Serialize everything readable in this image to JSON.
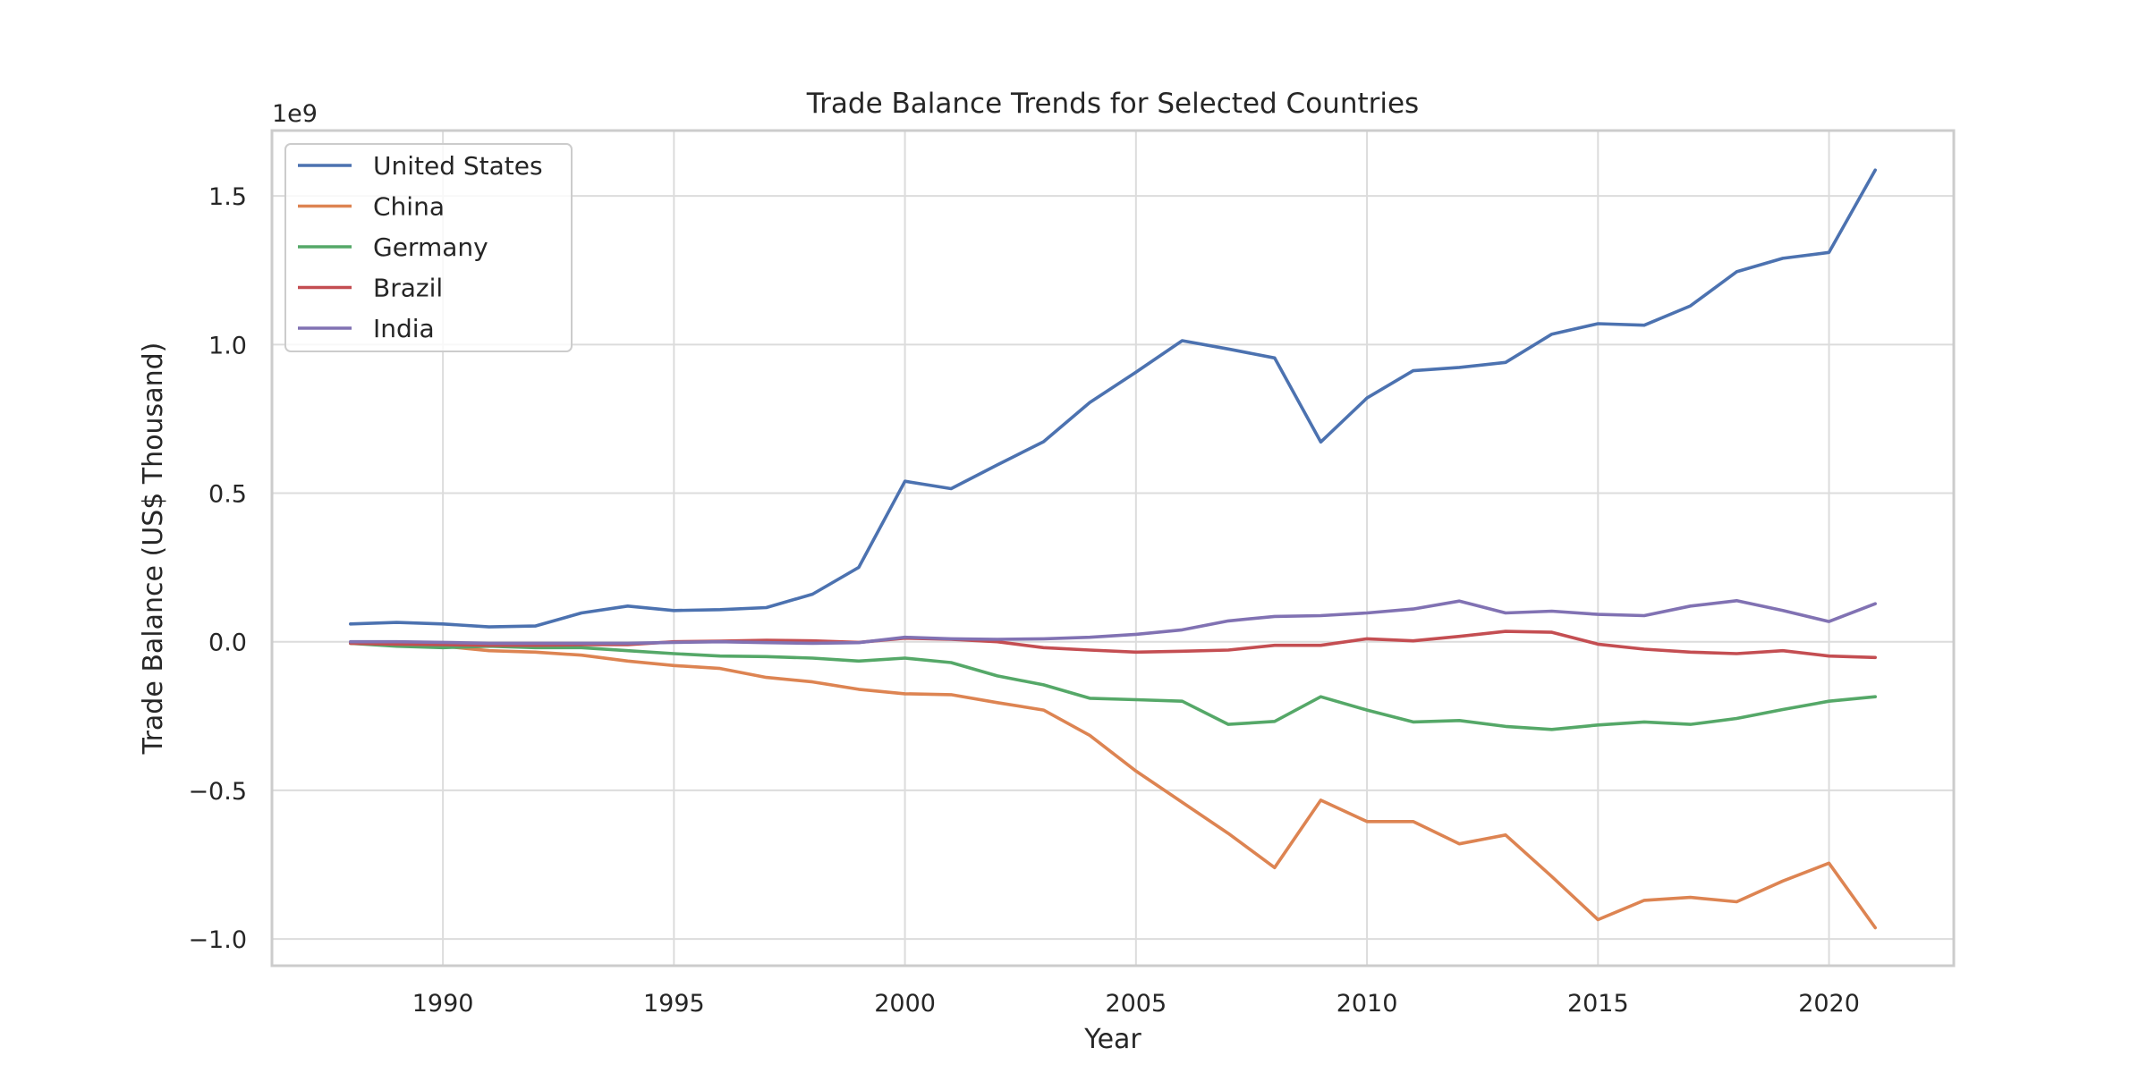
{
  "chart_data": {
    "type": "line",
    "title": "Trade Balance Trends for Selected Countries",
    "xlabel": "Year",
    "ylabel": "Trade Balance (US$ Thousand)",
    "y_offset_text": "1e9",
    "xlim": [
      1986.3,
      2022.7
    ],
    "ylim": [
      -1.09,
      1.72
    ],
    "x_ticks": [
      1990,
      1995,
      2000,
      2005,
      2010,
      2015,
      2020
    ],
    "x_tick_labels": [
      "1990",
      "1995",
      "2000",
      "2005",
      "2010",
      "2015",
      "2020"
    ],
    "y_ticks": [
      -1.0,
      -0.5,
      0.0,
      0.5,
      1.0,
      1.5
    ],
    "y_tick_labels": [
      "−1.0",
      "−0.5",
      "0.0",
      "0.5",
      "1.0",
      "1.5"
    ],
    "grid": true,
    "legend_position": "upper-left",
    "x": [
      1988,
      1989,
      1990,
      1991,
      1992,
      1993,
      1994,
      1995,
      1996,
      1997,
      1998,
      1999,
      2000,
      2001,
      2002,
      2003,
      2004,
      2005,
      2006,
      2007,
      2008,
      2009,
      2010,
      2011,
      2012,
      2013,
      2014,
      2015,
      2016,
      2017,
      2018,
      2019,
      2020,
      2021
    ],
    "series": [
      {
        "name": "United States",
        "color": "#4c72b0",
        "values": [
          0.06,
          0.065,
          0.06,
          0.05,
          0.053,
          0.097,
          0.12,
          0.105,
          0.108,
          0.115,
          0.16,
          0.25,
          0.54,
          0.515,
          0.595,
          0.673,
          0.805,
          0.907,
          1.013,
          0.985,
          0.955,
          0.672,
          0.82,
          0.912,
          0.923,
          0.94,
          1.035,
          1.07,
          1.065,
          1.13,
          1.245,
          1.29,
          1.31,
          1.587
        ]
      },
      {
        "name": "China",
        "color": "#dd8452",
        "values": [
          -0.005,
          -0.01,
          -0.015,
          -0.03,
          -0.035,
          -0.045,
          -0.065,
          -0.08,
          -0.09,
          -0.12,
          -0.135,
          -0.16,
          -0.175,
          -0.178,
          -0.205,
          -0.23,
          -0.315,
          -0.435,
          -0.54,
          -0.645,
          -0.76,
          -0.533,
          -0.605,
          -0.605,
          -0.68,
          -0.65,
          -0.79,
          -0.935,
          -0.87,
          -0.86,
          -0.875,
          -0.805,
          -0.745,
          -0.962
        ]
      },
      {
        "name": "Germany",
        "color": "#55a868",
        "values": [
          -0.005,
          -0.015,
          -0.02,
          -0.015,
          -0.02,
          -0.02,
          -0.03,
          -0.04,
          -0.048,
          -0.05,
          -0.055,
          -0.065,
          -0.055,
          -0.07,
          -0.115,
          -0.145,
          -0.19,
          -0.195,
          -0.2,
          -0.278,
          -0.268,
          -0.185,
          -0.23,
          -0.27,
          -0.265,
          -0.285,
          -0.295,
          -0.28,
          -0.27,
          -0.278,
          -0.258,
          -0.228,
          -0.2,
          -0.185
        ]
      },
      {
        "name": "Brazil",
        "color": "#c44e52",
        "values": [
          -0.005,
          -0.008,
          -0.01,
          -0.012,
          -0.012,
          -0.01,
          -0.01,
          0.0,
          0.002,
          0.005,
          0.003,
          -0.002,
          0.012,
          0.008,
          0.0,
          -0.02,
          -0.028,
          -0.035,
          -0.032,
          -0.028,
          -0.012,
          -0.012,
          0.01,
          0.003,
          0.018,
          0.035,
          0.032,
          -0.008,
          -0.025,
          -0.035,
          -0.04,
          -0.03,
          -0.048,
          -0.053
        ]
      },
      {
        "name": "India",
        "color": "#8172b3",
        "values": [
          0.0,
          0.0,
          -0.002,
          -0.005,
          -0.005,
          -0.005,
          -0.005,
          -0.002,
          0.0,
          -0.003,
          -0.005,
          -0.003,
          0.015,
          0.01,
          0.008,
          0.01,
          0.015,
          0.025,
          0.04,
          0.07,
          0.085,
          0.088,
          0.097,
          0.11,
          0.137,
          0.097,
          0.103,
          0.092,
          0.088,
          0.12,
          0.138,
          0.105,
          0.068,
          0.128
        ]
      }
    ]
  }
}
